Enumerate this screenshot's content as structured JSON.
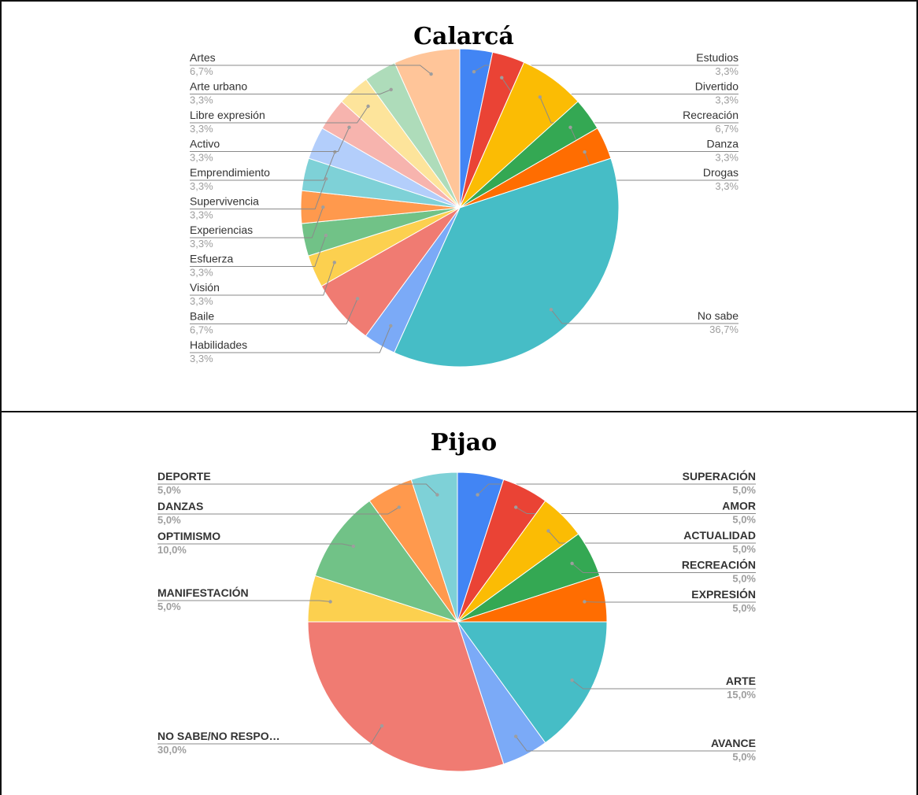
{
  "chart_data": [
    {
      "type": "pie",
      "title": "Calarcá",
      "slices": [
        {
          "label": "Estudios",
          "value": 3.3,
          "pct": "3,3%",
          "color": "#4285F4",
          "side": "right"
        },
        {
          "label": "Divertido",
          "value": 3.3,
          "pct": "3,3%",
          "color": "#EA4335",
          "side": "right"
        },
        {
          "label": "Recreación",
          "value": 6.7,
          "pct": "6,7%",
          "color": "#FBBC04",
          "side": "right"
        },
        {
          "label": "Danza",
          "value": 3.3,
          "pct": "3,3%",
          "color": "#34A853",
          "side": "right"
        },
        {
          "label": "Drogas",
          "value": 3.3,
          "pct": "3,3%",
          "color": "#FF6D01",
          "side": "right"
        },
        {
          "label": "No sabe",
          "value": 36.7,
          "pct": "36,7%",
          "color": "#46BDC6",
          "side": "right"
        },
        {
          "label": "Habilidades",
          "value": 3.3,
          "pct": "3,3%",
          "color": "#7BAAF7",
          "side": "left"
        },
        {
          "label": "Baile",
          "value": 6.7,
          "pct": "6,7%",
          "color": "#F07B72",
          "side": "left"
        },
        {
          "label": "Visión",
          "value": 3.3,
          "pct": "3,3%",
          "color": "#FCD04F",
          "side": "left"
        },
        {
          "label": "Esfuerza",
          "value": 3.3,
          "pct": "3,3%",
          "color": "#71C287",
          "side": "left"
        },
        {
          "label": "Experiencias",
          "value": 3.3,
          "pct": "3,3%",
          "color": "#FF994D",
          "side": "left"
        },
        {
          "label": "Supervivencia",
          "value": 3.3,
          "pct": "3,3%",
          "color": "#7ED1D7",
          "side": "left"
        },
        {
          "label": "Emprendimiento",
          "value": 3.3,
          "pct": "3,3%",
          "color": "#B3CEFB",
          "side": "left"
        },
        {
          "label": "Activo",
          "value": 3.3,
          "pct": "3,3%",
          "color": "#F7B4AE",
          "side": "left"
        },
        {
          "label": "Libre expresión",
          "value": 3.3,
          "pct": "3,3%",
          "color": "#FDE49B",
          "side": "left"
        },
        {
          "label": "Arte urbano",
          "value": 3.3,
          "pct": "3,3%",
          "color": "#AEDCBA",
          "side": "left"
        },
        {
          "label": "Artes",
          "value": 6.7,
          "pct": "6,7%",
          "color": "#FFC599",
          "side": "left"
        }
      ]
    },
    {
      "type": "pie",
      "title": "Pijao",
      "slices": [
        {
          "label": "SUPERACIÓN",
          "value": 5.0,
          "pct": "5,0%",
          "color": "#4285F4",
          "side": "right"
        },
        {
          "label": "AMOR",
          "value": 5.0,
          "pct": "5,0%",
          "color": "#EA4335",
          "side": "right"
        },
        {
          "label": "ACTUALIDAD",
          "value": 5.0,
          "pct": "5,0%",
          "color": "#FBBC04",
          "side": "right"
        },
        {
          "label": "RECREACIÓN",
          "value": 5.0,
          "pct": "5,0%",
          "color": "#34A853",
          "side": "right"
        },
        {
          "label": "EXPRESIÓN",
          "value": 5.0,
          "pct": "5,0%",
          "color": "#FF6D01",
          "side": "right"
        },
        {
          "label": "ARTE",
          "value": 15.0,
          "pct": "15,0%",
          "color": "#46BDC6",
          "side": "right"
        },
        {
          "label": "AVANCE",
          "value": 5.0,
          "pct": "5,0%",
          "color": "#7BAAF7",
          "side": "right"
        },
        {
          "label": "NO SABE/NO RESPO…",
          "value": 30.0,
          "pct": "30,0%",
          "color": "#F07B72",
          "side": "left"
        },
        {
          "label": "MANIFESTACIÓN",
          "value": 5.0,
          "pct": "5,0%",
          "color": "#FCD04F",
          "side": "left"
        },
        {
          "label": "OPTIMISMO",
          "value": 10.0,
          "pct": "10,0%",
          "color": "#71C287",
          "side": "left"
        },
        {
          "label": "DANZAS",
          "value": 5.0,
          "pct": "5,0%",
          "color": "#FF994D",
          "side": "left"
        },
        {
          "label": "DEPORTE",
          "value": 5.0,
          "pct": "5,0%",
          "color": "#7ED1D7",
          "side": "left"
        }
      ]
    }
  ]
}
